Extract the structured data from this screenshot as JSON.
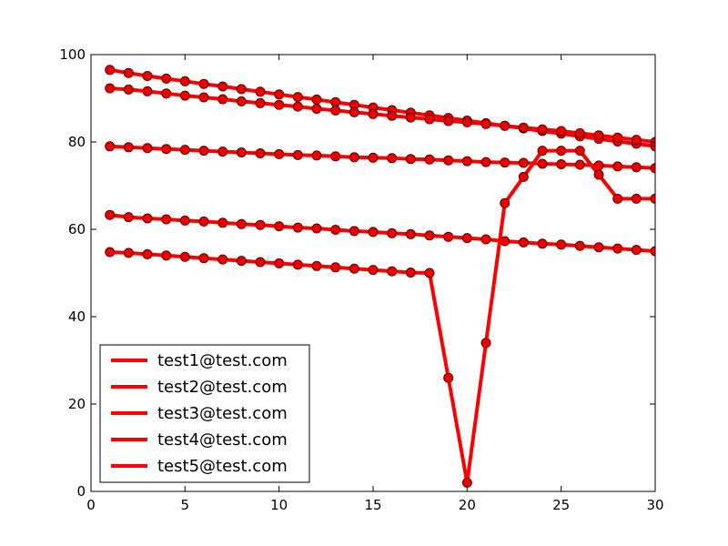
{
  "chart_data": {
    "type": "line",
    "title": "",
    "xlabel": "",
    "ylabel": "",
    "xlim": [
      0,
      30
    ],
    "ylim": [
      0,
      100
    ],
    "xticks": [
      0,
      5,
      10,
      15,
      20,
      25,
      30
    ],
    "yticks": [
      0,
      20,
      40,
      60,
      80,
      100
    ],
    "grid": false,
    "legend_position": "lower-left",
    "line_color": "#ff0000",
    "marker_face": "#ee0000",
    "marker_edge": "#5a0000",
    "x": [
      1,
      2,
      3,
      4,
      5,
      6,
      7,
      8,
      9,
      10,
      11,
      12,
      13,
      14,
      15,
      16,
      17,
      18,
      19,
      20,
      21,
      22,
      23,
      24,
      25,
      26,
      27,
      28,
      29,
      30
    ],
    "series": [
      {
        "name": "test1@test.com",
        "values": [
          96.5,
          95.8,
          95.1,
          94.5,
          93.9,
          93.3,
          92.7,
          92.1,
          91.5,
          90.9,
          90.3,
          89.7,
          89.1,
          88.5,
          87.9,
          87.3,
          86.7,
          86.1,
          85.5,
          84.9,
          84.3,
          83.7,
          83.1,
          82.5,
          81.9,
          81.3,
          80.7,
          80.1,
          79.6,
          79.0
        ]
      },
      {
        "name": "test2@test.com",
        "values": [
          92.3,
          92.0,
          91.6,
          91.1,
          90.6,
          90.2,
          89.8,
          89.3,
          88.9,
          88.5,
          88.1,
          87.6,
          87.2,
          86.8,
          86.4,
          86.0,
          85.6,
          85.2,
          84.8,
          84.5,
          84.1,
          83.7,
          83.3,
          82.9,
          82.5,
          82.0,
          81.5,
          81.0,
          80.5,
          80.0
        ]
      },
      {
        "name": "test3@test.com",
        "values": [
          79.0,
          78.8,
          78.6,
          78.4,
          78.2,
          78.0,
          77.8,
          77.6,
          77.4,
          77.2,
          77.0,
          76.9,
          76.7,
          76.5,
          76.4,
          76.3,
          76.1,
          76.0,
          75.8,
          75.6,
          75.4,
          75.3,
          75.2,
          75.0,
          74.9,
          74.8,
          74.6,
          74.4,
          74.2,
          74.0
        ]
      },
      {
        "name": "test4@test.com",
        "values": [
          63.3,
          62.8,
          62.5,
          62.3,
          62.0,
          61.8,
          61.5,
          61.2,
          61.0,
          60.7,
          60.4,
          60.2,
          59.9,
          59.6,
          59.4,
          59.1,
          58.9,
          58.6,
          58.3,
          58.0,
          57.7,
          57.3,
          57.0,
          56.7,
          56.5,
          56.2,
          55.9,
          55.6,
          55.3,
          55.0
        ]
      },
      {
        "name": "test5@test.com",
        "values": [
          54.8,
          54.6,
          54.3,
          54.0,
          53.7,
          53.4,
          53.1,
          52.8,
          52.5,
          52.2,
          51.9,
          51.6,
          51.3,
          51.0,
          50.7,
          50.4,
          50.1,
          50.0,
          26.0,
          2.0,
          34.0,
          66.0,
          72.0,
          78.0,
          78.0,
          78.0,
          72.5,
          67.0,
          67.0,
          67.0
        ]
      }
    ]
  }
}
